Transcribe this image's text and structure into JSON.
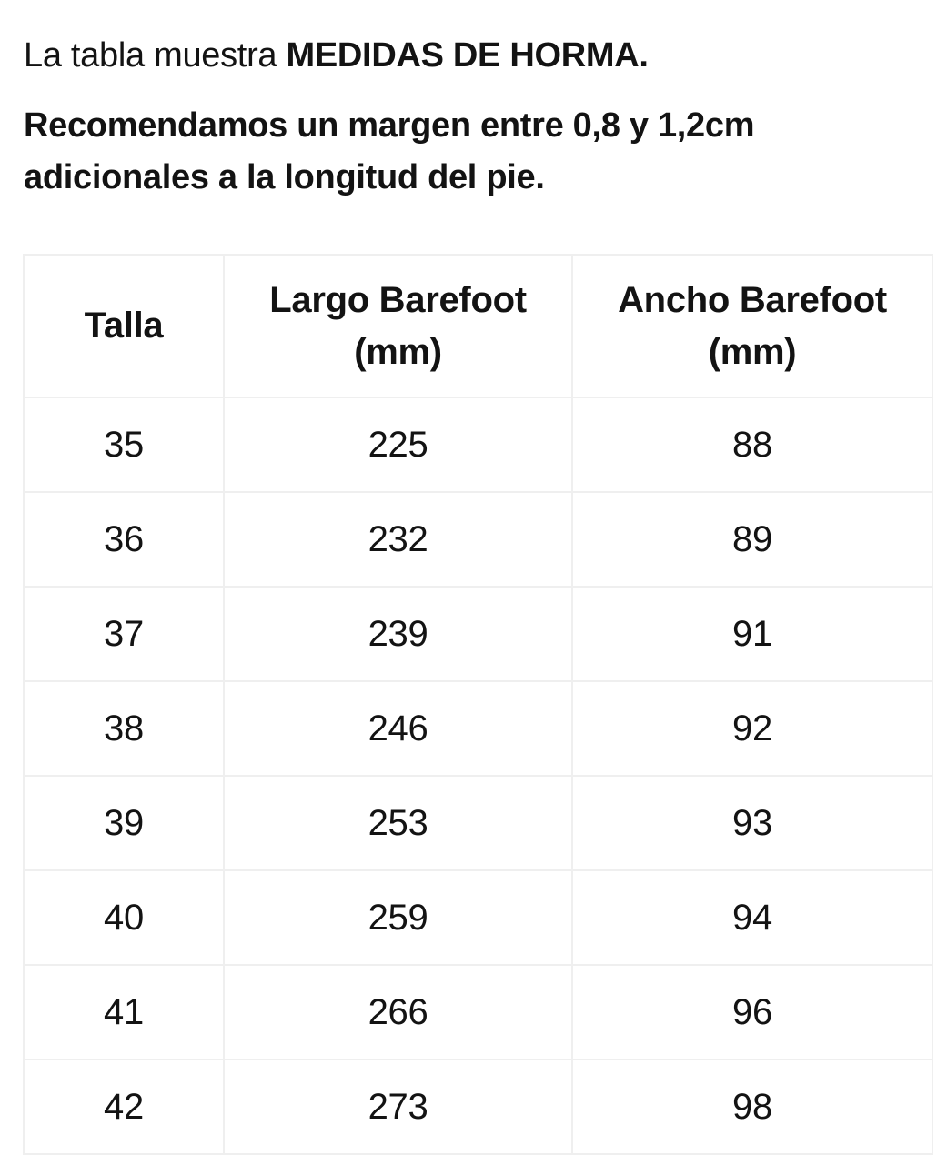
{
  "intro": {
    "prefix": "La tabla muestra ",
    "emphasis": "MEDIDAS DE HORMA."
  },
  "recommendation": "Recomendamos un margen entre 0,8 y 1,2cm adicionales a la longitud del pie.",
  "size_table": {
    "columns": [
      "Talla",
      "Largo Barefoot (mm)",
      "Ancho Barefoot (mm)"
    ],
    "rows": [
      [
        "35",
        "225",
        "88"
      ],
      [
        "36",
        "232",
        "89"
      ],
      [
        "37",
        "239",
        "91"
      ],
      [
        "38",
        "246",
        "92"
      ],
      [
        "39",
        "253",
        "93"
      ],
      [
        "40",
        "259",
        "94"
      ],
      [
        "41",
        "266",
        "96"
      ],
      [
        "42",
        "273",
        "98"
      ]
    ]
  },
  "colors": {
    "background": "#ffffff",
    "text": "#131313",
    "table_border": "#efefef"
  }
}
